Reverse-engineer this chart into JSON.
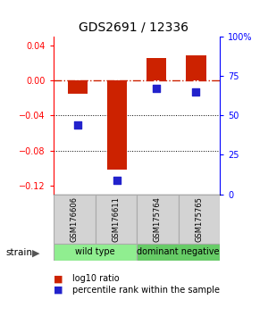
{
  "title": "GDS2691 / 12336",
  "samples": [
    "GSM176606",
    "GSM176611",
    "GSM175764",
    "GSM175765"
  ],
  "log10_ratio": [
    -0.015,
    -0.102,
    0.025,
    0.028
  ],
  "percentile_rank": [
    44,
    9,
    67,
    65
  ],
  "groups": [
    {
      "label": "wild type",
      "samples": [
        0,
        1
      ],
      "color": "#90EE90"
    },
    {
      "label": "dominant negative",
      "samples": [
        2,
        3
      ],
      "color": "#66CC66"
    }
  ],
  "group_label": "strain",
  "ylim_left": [
    -0.13,
    0.05
  ],
  "ylim_right": [
    0,
    100
  ],
  "yticks_left": [
    -0.12,
    -0.08,
    -0.04,
    0.0,
    0.04
  ],
  "yticks_right": [
    0,
    25,
    50,
    75,
    100
  ],
  "ytick_labels_right": [
    "0",
    "25",
    "50",
    "75",
    "100%"
  ],
  "bar_color": "#CC2200",
  "dot_color": "#2222CC",
  "hline_color": "#CC2200",
  "background_color": "#ffffff",
  "bar_width": 0.5,
  "dot_size": 35
}
